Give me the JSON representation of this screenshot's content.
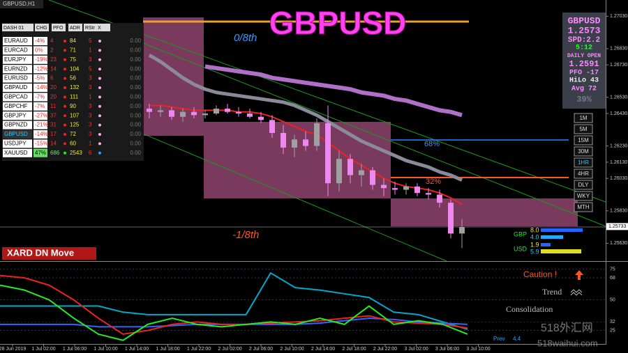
{
  "window_title": "GBPUSD,H1",
  "symbol_title": "GBPUSD",
  "dashboard": {
    "header": [
      "DASH 01",
      "CHG",
      "PFO",
      "ADR",
      "RStr",
      "X"
    ],
    "rows": [
      [
        "EURAUD",
        "-4%",
        4,
        84,
        5,
        "0.00"
      ],
      [
        "EURCAD",
        "0%",
        2,
        71,
        1,
        "0.00"
      ],
      [
        "EURJPY",
        "-19%",
        23,
        75,
        3,
        "0.00"
      ],
      [
        "EURNZD",
        "-12%",
        14,
        104,
        5,
        "0.00"
      ],
      [
        "EURUSD",
        "-5%",
        6,
        56,
        3,
        "0.00"
      ],
      [
        "GBPAUD",
        "-14%",
        20,
        132,
        3,
        "0.00"
      ],
      [
        "GBPCAD",
        "-7%",
        20,
        111,
        1,
        "0.00"
      ],
      [
        "GBPCHF",
        "-7%",
        11,
        90,
        3,
        "0.00"
      ],
      [
        "GBPJPY",
        "-27%",
        37,
        107,
        3,
        "0.00"
      ],
      [
        "GBPNZD",
        "-21%",
        31,
        125,
        3,
        "0.00"
      ],
      [
        "GBPUSD",
        "-14%",
        17,
        72,
        3,
        "0.00"
      ],
      [
        "USDJPY",
        "-15%",
        14,
        60,
        1,
        "0.00"
      ],
      [
        "XAUUSD",
        "47%",
        686,
        2543,
        6,
        "0.00"
      ]
    ]
  },
  "info_panel": [
    "GBPUSD",
    "1.2573",
    "SPD:2.2",
    "5:12",
    "DAILY OPEN",
    "1.2591",
    "PFO -17",
    "HiLo 43",
    "Avg 72",
    "39%"
  ],
  "timeframes": [
    "1M",
    "5M",
    "15M",
    "30M",
    "1HR",
    "4HR",
    "DLY",
    "WKY",
    "MTH"
  ],
  "levels": {
    "top": "0/8th",
    "bottom": "-1/8th",
    "upper_pct": "68%",
    "lower_pct": "32%"
  },
  "signal": "XARD DN Move",
  "strength": {
    "gbp": "GBP",
    "gbp_values": [
      "8.0",
      "4.0"
    ],
    "usd": "USD",
    "usd_values": [
      "1.9",
      "5.9"
    ]
  },
  "sub_labels": {
    "caution": "Caution !",
    "trend": "Trend",
    "consolidation": "Consolidation",
    "prev": "Prev",
    "prev_value": "4.4"
  },
  "watermark": [
    "518外汇网",
    "518waihui.com"
  ],
  "chart_data": [
    {
      "type": "candlestick",
      "ylim": [
        1.2552,
        1.2713
      ],
      "yticks": [
        {
          "value": 1.2703,
          "label": "1.27030"
        },
        {
          "value": 1.2683,
          "label": "1.26830"
        },
        {
          "value": 1.2673,
          "label": "1.26730"
        },
        {
          "value": 1.2653,
          "label": "1.26530"
        },
        {
          "value": 1.2643,
          "label": "1.26430"
        },
        {
          "value": 1.2623,
          "label": "1.26230"
        },
        {
          "value": 1.2613,
          "label": "1.26130"
        },
        {
          "value": 1.2603,
          "label": "1.26030"
        },
        {
          "value": 1.2583,
          "label": "1.25830"
        },
        {
          "value": 1.2563,
          "label": "1.25630"
        }
      ],
      "last_price": {
        "value": 1.25733,
        "label": "1.25733"
      },
      "x_labels": [
        "28 Jun 2019",
        "1 Jul 02:00",
        "1 Jul 06:00",
        "1 Jul 10:00",
        "1 Jul 14:00",
        "1 Jul 18:00",
        "1 Jul 22:00",
        "2 Jul 02:00",
        "2 Jul 06:00",
        "2 Jul 10:00",
        "2 Jul 14:00",
        "2 Jul 18:00",
        "2 Jul 22:00",
        "3 Jul 02:00",
        "3 Jul 06:00",
        "3 Jul 10:00"
      ],
      "bull_color": "#a0a0a0",
      "bear_color": "#ee88ee",
      "open": [
        1.2646,
        1.2644,
        1.2645,
        1.2641,
        1.2644,
        1.2642,
        1.2643,
        1.2646,
        1.2644,
        1.2643,
        1.2641,
        1.2639,
        1.2631,
        1.2622,
        1.2627,
        1.2623,
        1.2637,
        1.26,
        1.2615,
        1.2605,
        1.2608,
        1.2599,
        1.2597,
        1.2596,
        1.2598,
        1.2594,
        1.2593,
        1.2588,
        1.2569
      ],
      "high": [
        1.2649,
        1.2648,
        1.2647,
        1.2646,
        1.2647,
        1.2645,
        1.2648,
        1.2649,
        1.2647,
        1.2646,
        1.2644,
        1.2642,
        1.2636,
        1.263,
        1.2632,
        1.264,
        1.2648,
        1.262,
        1.2618,
        1.2612,
        1.261,
        1.2603,
        1.2601,
        1.26,
        1.26,
        1.2597,
        1.2596,
        1.259,
        1.2578
      ],
      "low": [
        1.264,
        1.2641,
        1.2639,
        1.2638,
        1.264,
        1.264,
        1.2642,
        1.2643,
        1.2641,
        1.264,
        1.2637,
        1.2628,
        1.2618,
        1.2616,
        1.262,
        1.262,
        1.2592,
        1.2595,
        1.26,
        1.2598,
        1.2596,
        1.2592,
        1.2593,
        1.2593,
        1.2592,
        1.259,
        1.2585,
        1.2566,
        1.256
      ],
      "close": [
        1.2644,
        1.2645,
        1.2641,
        1.2644,
        1.2642,
        1.2643,
        1.2646,
        1.2644,
        1.2643,
        1.2641,
        1.2639,
        1.2631,
        1.2622,
        1.2627,
        1.2623,
        1.2637,
        1.26,
        1.2615,
        1.2605,
        1.2608,
        1.2599,
        1.2597,
        1.2596,
        1.2598,
        1.2594,
        1.2593,
        1.2588,
        1.2569,
        1.2573
      ],
      "series": [
        {
          "color": "#b070c8",
          "width": 6,
          "values": [
            null,
            null,
            null,
            null,
            null,
            1.2672,
            1.2671,
            1.267,
            1.2669,
            1.2668,
            1.2667,
            1.2665,
            1.2664,
            1.2663,
            1.2662,
            1.2661,
            1.266,
            1.2659,
            1.2658,
            1.2656,
            1.2655,
            1.2654,
            1.2652,
            1.2651,
            1.2649,
            1.2647,
            1.2645,
            1.2644,
            1.2642
          ]
        },
        {
          "color": "#8a8a9a",
          "width": 5,
          "values": [
            1.2679,
            1.2675,
            1.267,
            1.2665,
            1.2661,
            1.2658,
            1.2656,
            1.2655,
            1.2654,
            1.2653,
            1.2652,
            1.2651,
            1.265,
            1.2648,
            1.2645,
            1.2642,
            1.2638,
            1.2634,
            1.263,
            1.2626,
            1.2623,
            1.262,
            1.2617,
            1.2614,
            1.2612,
            1.261,
            1.2607,
            1.2605,
            1.2602
          ]
        },
        {
          "color": "#ee2222",
          "width": 2,
          "values": [
            1.2648,
            1.2648,
            1.2647,
            1.2646,
            1.2645,
            1.2645,
            1.2645,
            1.2645,
            1.2644,
            1.2644,
            1.2643,
            1.2641,
            1.2638,
            1.2635,
            1.2632,
            1.263,
            1.2625,
            1.262,
            1.2615,
            1.2611,
            1.2607,
            1.2603,
            1.26,
            1.2598,
            1.2597,
            1.2596,
            1.2594,
            1.2591,
            1.2587
          ]
        }
      ]
    },
    {
      "type": "line",
      "ylim": [
        14,
        80
      ],
      "yticks": [
        25,
        32,
        50,
        68,
        75
      ],
      "series": [
        {
          "color": "#00aacc",
          "values": [
            45,
            45,
            45,
            45,
            45,
            40,
            38,
            38,
            38,
            38,
            38,
            72,
            60,
            58,
            55,
            52,
            40,
            38,
            32,
            26
          ]
        },
        {
          "color": "#3366ff",
          "values": [
            30,
            30,
            30,
            30,
            28,
            28,
            28,
            29,
            30,
            30,
            30,
            30,
            30,
            31,
            33,
            35,
            34,
            32,
            31,
            30
          ]
        },
        {
          "color": "#ee2222",
          "values": [
            70,
            68,
            62,
            50,
            35,
            22,
            25,
            30,
            32,
            30,
            30,
            31,
            32,
            33,
            35,
            37,
            32,
            31,
            30,
            27
          ]
        },
        {
          "color": "#22ee22",
          "values": [
            62,
            58,
            50,
            35,
            22,
            17,
            30,
            35,
            30,
            28,
            30,
            32,
            30,
            35,
            30,
            45,
            30,
            33,
            30,
            22
          ]
        }
      ]
    }
  ]
}
